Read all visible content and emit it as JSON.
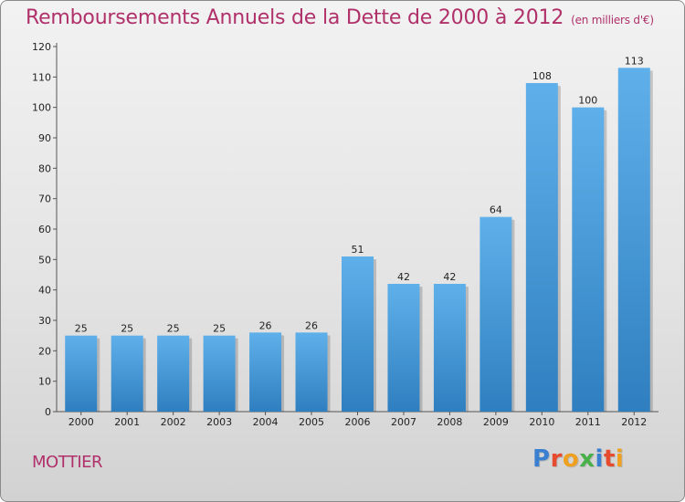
{
  "chart_data": {
    "type": "bar",
    "title": "Remboursements Annuels de la Dette de 2000 à 2012",
    "unit_note": "(en milliers d'€)",
    "categories": [
      "2000",
      "2001",
      "2002",
      "2003",
      "2004",
      "2005",
      "2006",
      "2007",
      "2008",
      "2009",
      "2010",
      "2011",
      "2012"
    ],
    "values": [
      25,
      25,
      25,
      25,
      26,
      26,
      51,
      42,
      42,
      64,
      108,
      100,
      113
    ],
    "ylim": [
      0,
      120
    ],
    "yticks": [
      0,
      10,
      20,
      30,
      40,
      50,
      60,
      70,
      80,
      90,
      100,
      110,
      120
    ],
    "xlabel": "",
    "ylabel": "",
    "grid": false,
    "bar_color": "#4a9fdc"
  },
  "footer": {
    "place_name": "MOTTIER",
    "brand_letters": [
      {
        "char": "P",
        "color": "#3a7fd0"
      },
      {
        "char": "r",
        "color": "#e64b2e"
      },
      {
        "char": "o",
        "color": "#f0a020"
      },
      {
        "char": "x",
        "color": "#49b04a"
      },
      {
        "char": "i",
        "color": "#3a7fd0"
      },
      {
        "char": "t",
        "color": "#e64b2e"
      },
      {
        "char": "i",
        "color": "#f0a020"
      }
    ]
  },
  "colors": {
    "title": "#b0306a",
    "axis": "#555555"
  }
}
